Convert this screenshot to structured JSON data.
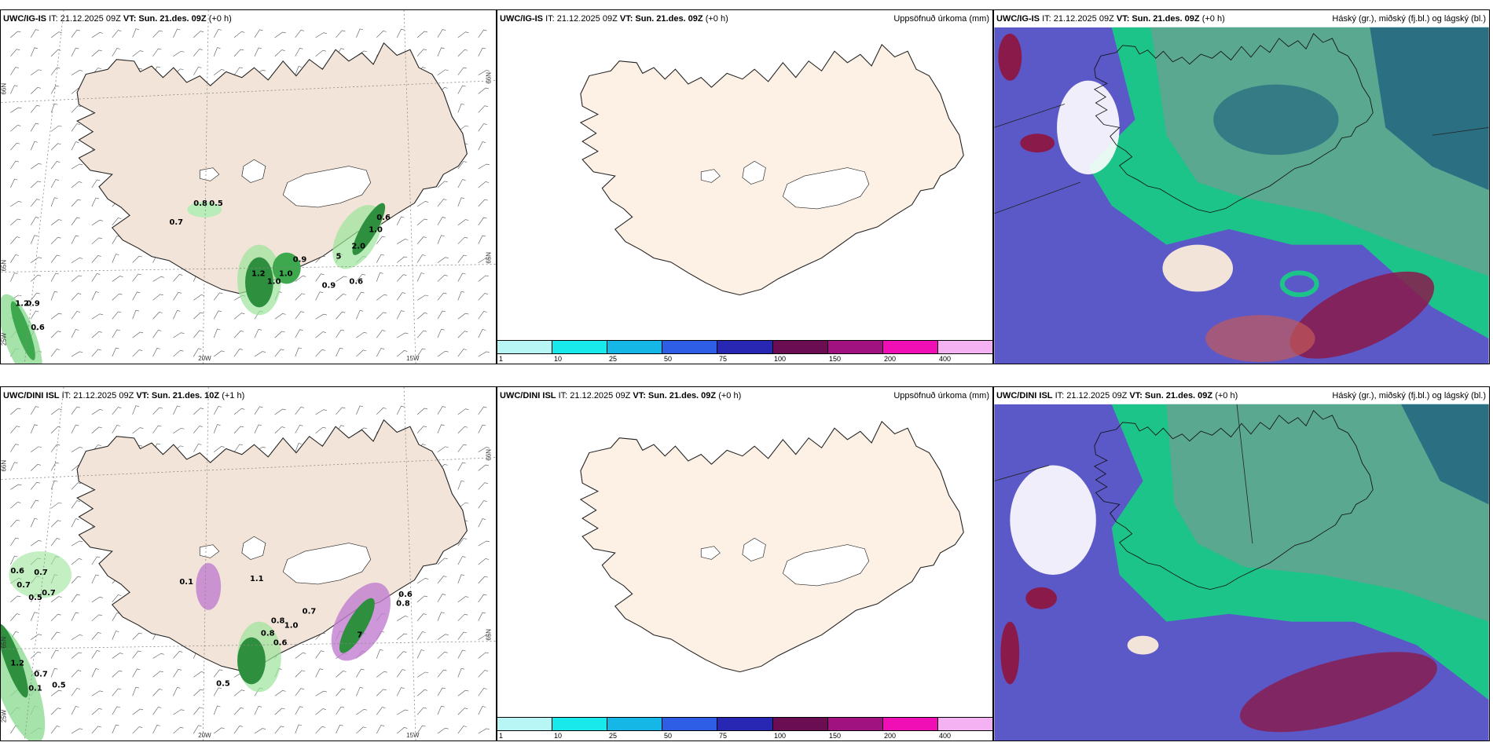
{
  "panels": [
    {
      "model": "UWC/IG-IS",
      "it": "IT: 21.12.2025 09Z",
      "vt_label": "VT:",
      "vt": "Sun. 21.des. 09Z",
      "lead": "(+0 h)",
      "right_title": "",
      "type": "wind-precip",
      "grid_labels": [
        "66N",
        "65N",
        "25W",
        "20W",
        "15W",
        "65N",
        "66N"
      ],
      "values": [
        "0.8",
        "0.5",
        "0.7",
        "0.6",
        "1.0",
        "2.0",
        "5",
        "0.9",
        "1.2",
        "1.0",
        "1.0",
        "0.9",
        "0.6",
        "1.2",
        "0.9",
        "0.6"
      ]
    },
    {
      "model": "UWC/IG-IS",
      "it": "IT: 21.12.2025 09Z",
      "vt_label": "VT:",
      "vt": "Sun. 21.des. 09Z",
      "lead": "(+0 h)",
      "right_title": "Uppsöfnuð úrkoma (mm)",
      "type": "accum",
      "colorbar": {
        "colors": [
          "#b8f6f6",
          "#19e9ea",
          "#14b7e6",
          "#2f5ee6",
          "#2727b3",
          "#6b0d52",
          "#a0127f",
          "#f00fb4",
          "#f5b2f2"
        ],
        "labels": [
          "1",
          "10",
          "25",
          "50",
          "75",
          "100",
          "150",
          "200",
          "400"
        ]
      }
    },
    {
      "model": "UWC/IG-IS",
      "it": "IT: 21.12.2025 09Z",
      "vt_label": "VT:",
      "vt": "Sun. 21.des. 09Z",
      "lead": "(+0 h)",
      "right_title": "Háský (gr.), miðský (fj.bl.) og lágský (bl.)",
      "type": "cloud"
    },
    {
      "model": "UWC/DINI ISL",
      "it": "IT: 21.12.2025 09Z",
      "vt_label": "VT:",
      "vt": "Sun. 21.des. 10Z",
      "lead": "(+1 h)",
      "right_title": "",
      "type": "wind-precip",
      "grid_labels": [
        "66N",
        "65N",
        "25W",
        "20W",
        "15W",
        "65N",
        "66N"
      ],
      "values": [
        "0.6",
        "0.7",
        "0.7",
        "0.5",
        "0.7",
        "0.1",
        "1.1",
        "0.7",
        "0.8",
        "1.0",
        "0.8",
        "0.6",
        "0.5",
        "0.6",
        "0.8",
        "1.2",
        "0.7",
        "0.5",
        "0.1",
        "7"
      ]
    },
    {
      "model": "UWC/DINI ISL",
      "it": "IT: 21.12.2025 09Z",
      "vt_label": "VT:",
      "vt": "Sun. 21.des. 09Z",
      "lead": "(+0 h)",
      "right_title": "Uppsöfnuð úrkoma (mm)",
      "type": "accum",
      "colorbar": {
        "colors": [
          "#b8f6f6",
          "#19e9ea",
          "#14b7e6",
          "#2f5ee6",
          "#2727b3",
          "#6b0d52",
          "#a0127f",
          "#f00fb4",
          "#f5b2f2"
        ],
        "labels": [
          "1",
          "10",
          "25",
          "50",
          "75",
          "100",
          "150",
          "200",
          "400"
        ]
      }
    },
    {
      "model": "UWC/DINI ISL",
      "it": "IT: 21.12.2025 09Z",
      "vt_label": "VT:",
      "vt": "Sun. 21.des. 09Z",
      "lead": "(+0 h)",
      "right_title": "Háský (gr.), miðský (fj.bl.) og lágský (bl.)",
      "type": "cloud"
    }
  ],
  "colors": {
    "land": "#f2e4d8",
    "land_accum": "#fdf0e4",
    "high_cloud": "#5aa890",
    "mid_cloud": "#2b6f82",
    "low_cloud": "#5b58c8",
    "green_band": "#1dc48a",
    "red_precip": "#8a1a4a"
  }
}
